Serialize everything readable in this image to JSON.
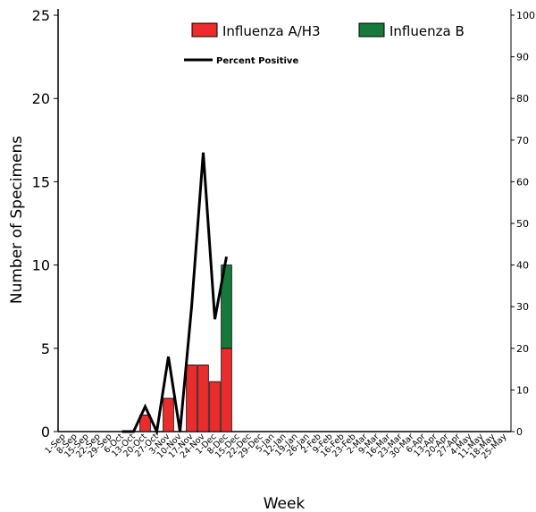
{
  "chart_data": {
    "type": "bar",
    "xlabel": "Week",
    "ylabel": "Number of Specimens",
    "ylim": [
      0,
      25
    ],
    "y_ticks": [
      0,
      5,
      10,
      15,
      20,
      25
    ],
    "y2lim": [
      0,
      100
    ],
    "y2_ticks": [
      0,
      10,
      20,
      30,
      40,
      50,
      60,
      70,
      80,
      90,
      100
    ],
    "grid": false,
    "legend_position": "top-right",
    "stacked": true,
    "categories": [
      "1-Sep",
      "8-Sep",
      "15-Sep",
      "22-Sep",
      "29-Sep",
      "6-Oct",
      "13-Oct",
      "20-Oct",
      "27-Oct",
      "3-Nov",
      "10-Nov",
      "17-Nov",
      "24-Nov",
      "1-Dec",
      "8-Dec",
      "15-Dec",
      "22-Dec",
      "29-Dec",
      "5-Jan",
      "12-Jan",
      "19-Jan",
      "26-Jan",
      "2-Feb",
      "9-Feb",
      "16-Feb",
      "23-Feb",
      "2-Mar",
      "9-Mar",
      "16-Mar",
      "23-Mar",
      "30-Mar",
      "6-Apr",
      "13-Apr",
      "20-Apr",
      "27-Apr",
      "4-May",
      "11-May",
      "18-May",
      "25-May"
    ],
    "series": [
      {
        "name": "Influenza A/H3",
        "color": "#ee2b2b",
        "values": [
          0,
          0,
          0,
          0,
          0,
          0,
          0,
          1,
          0,
          2,
          0,
          4,
          4,
          3,
          5,
          0,
          0,
          0,
          0,
          0,
          0,
          0,
          0,
          0,
          0,
          0,
          0,
          0,
          0,
          0,
          0,
          0,
          0,
          0,
          0,
          0,
          0,
          0,
          0
        ]
      },
      {
        "name": "Influenza B",
        "color": "#157a3a",
        "values": [
          0,
          0,
          0,
          0,
          0,
          0,
          0,
          0,
          0,
          0,
          0,
          0,
          0,
          0,
          5,
          0,
          0,
          0,
          0,
          0,
          0,
          0,
          0,
          0,
          0,
          0,
          0,
          0,
          0,
          0,
          0,
          0,
          0,
          0,
          0,
          0,
          0,
          0,
          0
        ]
      }
    ],
    "line_series": {
      "name": "Percent Positive",
      "axis": "right",
      "color": "#000000",
      "points": [
        [
          "6-Oct",
          0
        ],
        [
          "13-Oct",
          0
        ],
        [
          "20-Oct",
          6
        ],
        [
          "27-Oct",
          0
        ],
        [
          "3-Nov",
          18
        ],
        [
          "10-Nov",
          0
        ],
        [
          "17-Nov",
          30
        ],
        [
          "24-Nov",
          67
        ],
        [
          "1-Dec",
          27
        ],
        [
          "8-Dec",
          42
        ]
      ]
    }
  }
}
